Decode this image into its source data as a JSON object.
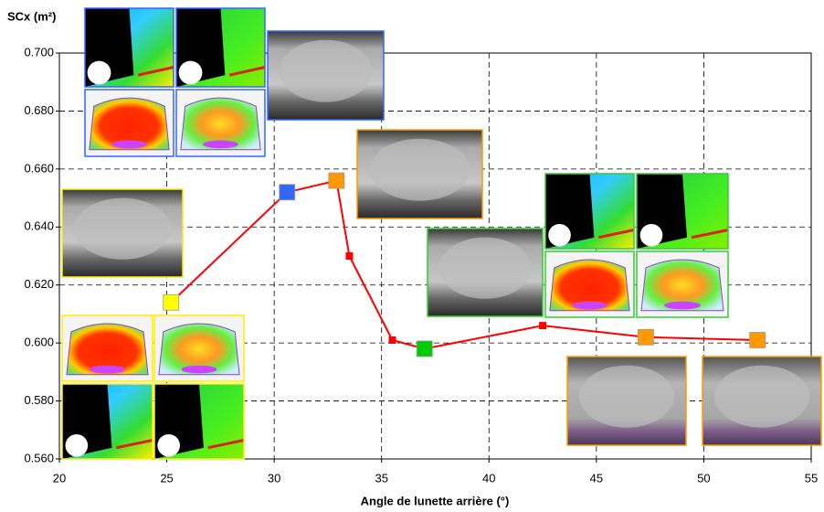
{
  "chart_data": {
    "type": "line",
    "y_label": "SCx (m²)",
    "x_label": "Angle de lunette arrière (°)",
    "xlim": [
      20,
      55
    ],
    "xticks": [
      20,
      25,
      30,
      35,
      40,
      45,
      50,
      55
    ],
    "ylim": [
      0.56,
      0.7
    ],
    "yticks": [
      {
        "value": 0.56,
        "label": "0.560"
      },
      {
        "value": 0.58,
        "label": "0.580"
      },
      {
        "value": 0.6,
        "label": "0.600"
      },
      {
        "value": 0.62,
        "label": "0.620"
      },
      {
        "value": 0.64,
        "label": "0.640"
      },
      {
        "value": 0.66,
        "label": "0.660"
      },
      {
        "value": 0.68,
        "label": "0.680"
      },
      {
        "value": 0.7,
        "label": "0.700"
      }
    ],
    "grid": true,
    "series": [
      {
        "color": "#ff0000",
        "x": [
          25.2,
          30.6,
          32.9,
          33.5,
          35.5,
          37.0,
          42.5,
          47.3,
          52.5
        ],
        "values": [
          0.614,
          0.652,
          0.656,
          0.63,
          0.601,
          0.598,
          0.606,
          0.602,
          0.601
        ],
        "marker_colors": [
          "#ffff00",
          "#3366ff",
          "#ff9900",
          "#ff0000",
          "#ff0000",
          "#00cc00",
          "#ff0000",
          "#ff9900",
          "#ff9900"
        ]
      }
    ]
  }
}
